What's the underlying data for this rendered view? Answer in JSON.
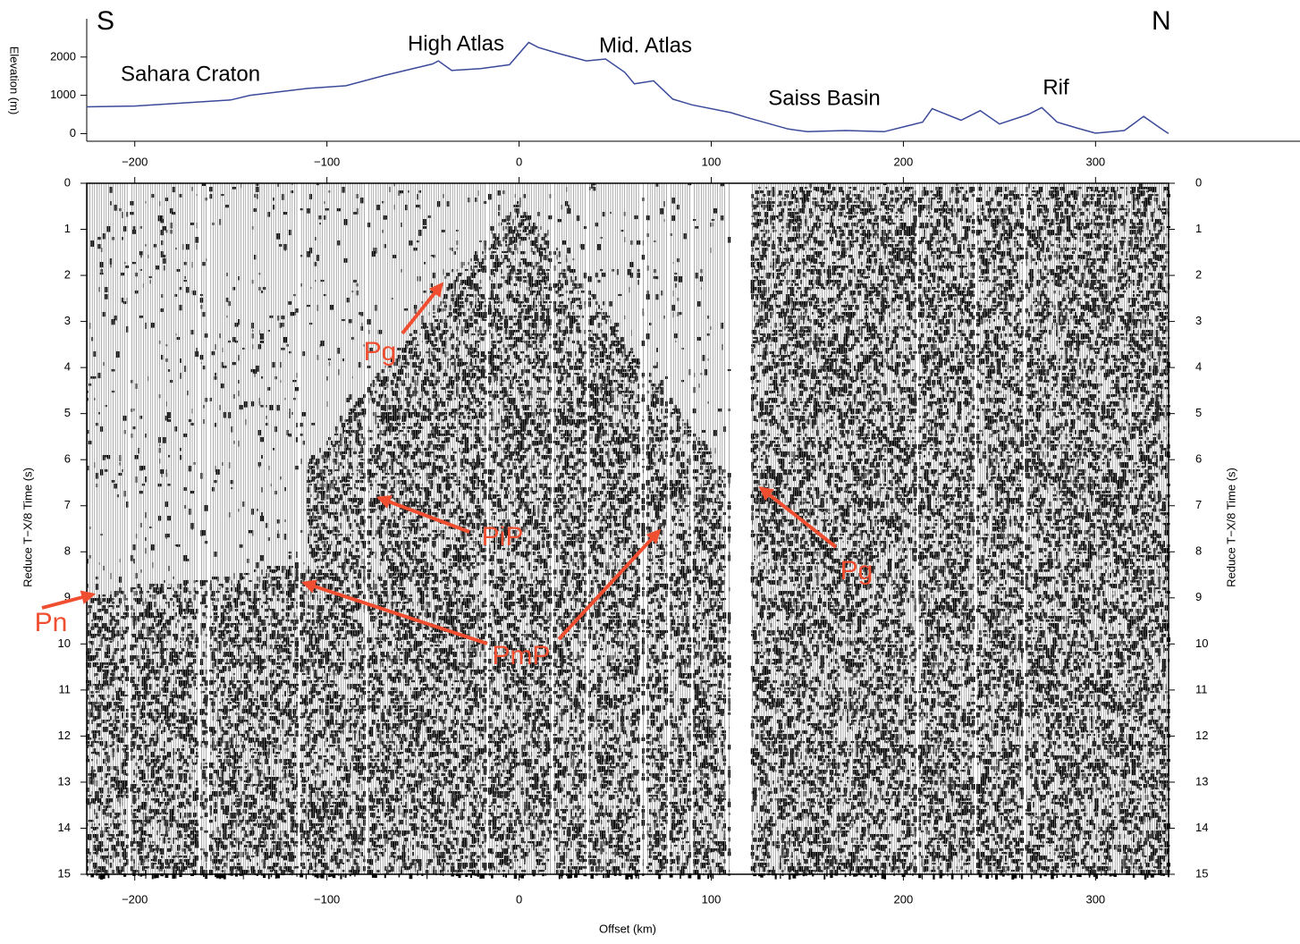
{
  "chart_data": [
    {
      "type": "line",
      "ylabel": "Elevation (m)",
      "color": "#3b4a9a",
      "x": [
        -225,
        -200,
        -150,
        -140,
        -110,
        -90,
        -70,
        -45,
        -42,
        -35,
        -20,
        -5,
        5,
        10,
        20,
        35,
        45,
        55,
        60,
        70,
        80,
        90,
        110,
        120,
        140,
        150,
        170,
        190,
        210,
        215,
        220,
        230,
        240,
        250,
        265,
        272,
        280,
        290,
        300,
        315,
        325,
        335,
        338
      ],
      "values": [
        700,
        720,
        880,
        1000,
        1180,
        1250,
        1520,
        1820,
        1900,
        1650,
        1700,
        1800,
        2380,
        2250,
        2100,
        1900,
        1950,
        1600,
        1300,
        1380,
        900,
        750,
        550,
        400,
        120,
        50,
        80,
        50,
        300,
        650,
        550,
        350,
        600,
        250,
        500,
        680,
        300,
        150,
        10,
        80,
        450,
        100,
        0
      ],
      "xlim": [
        -225,
        338
      ],
      "ylim": [
        -200,
        3000
      ],
      "xticks": [
        {
          "value": -200,
          "label": "−200"
        },
        {
          "value": -100,
          "label": "−100"
        },
        0,
        100,
        200,
        300
      ],
      "yticks": [
        0,
        1000,
        2000
      ],
      "annotations": [
        "S",
        "N",
        "Sahara Craton",
        "High Atlas",
        "Mid. Atlas",
        "Saiss Basin",
        "Rif"
      ]
    },
    {
      "type": "seismic",
      "xlabel": "Offset (km)",
      "ylabel": "Reduce T−X/8 Time (s)",
      "y_inverted": true,
      "xlim": [
        -225,
        338
      ],
      "ylim": [
        0,
        15
      ],
      "xticks": [
        {
          "value": -200,
          "label": "−200"
        },
        {
          "value": -100,
          "label": "−100"
        },
        0,
        100,
        200,
        300
      ],
      "yticks": [
        0,
        1,
        2,
        3,
        4,
        5,
        6,
        7,
        8,
        9,
        10,
        11,
        12,
        13,
        14,
        15
      ],
      "annotation_color": "#f04e30",
      "annotations": [
        "Pg",
        "PiP",
        "Pg",
        "Pn",
        "PmP"
      ]
    }
  ]
}
